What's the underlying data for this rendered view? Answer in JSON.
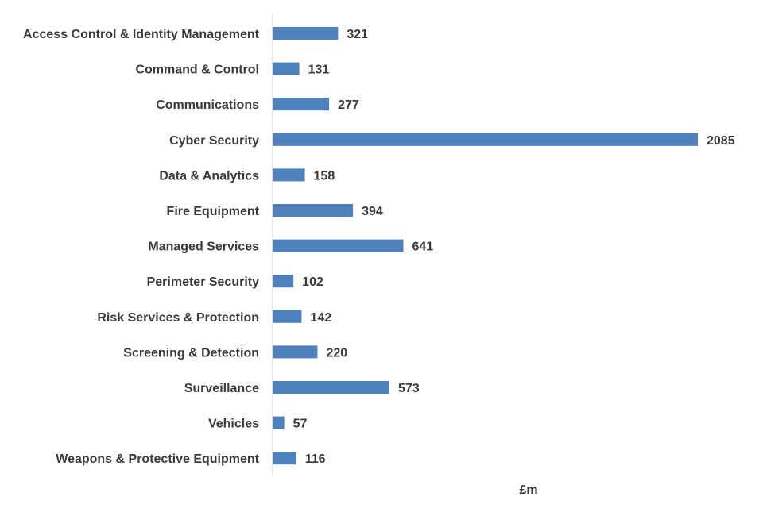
{
  "chart_data": {
    "type": "bar",
    "orientation": "horizontal",
    "categories": [
      "Access Control & Identity Management",
      "Command & Control",
      "Communications",
      "Cyber Security",
      "Data & Analytics",
      "Fire Equipment",
      "Managed Services",
      "Perimeter Security",
      "Risk Services & Protection",
      "Screening & Detection",
      "Surveillance",
      "Vehicles",
      "Weapons & Protective Equipment"
    ],
    "values": [
      321,
      131,
      277,
      2085,
      158,
      394,
      641,
      102,
      142,
      220,
      573,
      57,
      116
    ],
    "title": "",
    "xlabel": "£m",
    "ylabel": "",
    "xlim": [
      0,
      2085
    ],
    "grid": false,
    "legend": "none",
    "data_labels": true,
    "bar_color": "#4f81bd"
  }
}
